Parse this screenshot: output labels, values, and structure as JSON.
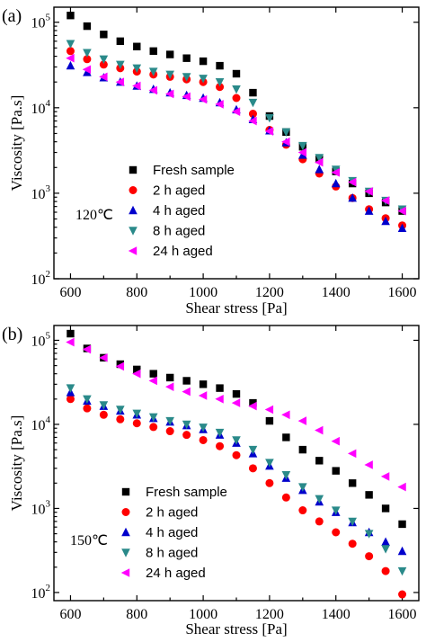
{
  "chart_data": [
    {
      "type": "scatter",
      "panel_label": "(a)",
      "temperature_label": "120℃",
      "xlabel": "Shear stress [Pa]",
      "ylabel": "Viscosity [Pa.s]",
      "xlim": [
        550,
        1650
      ],
      "ylim": [
        100,
        150000
      ],
      "yscale": "log",
      "x_ticks": [
        600,
        800,
        1000,
        1200,
        1400,
        1600
      ],
      "y_ticks": [
        {
          "value": 100,
          "label": "10",
          "exp": "2"
        },
        {
          "value": 1000,
          "label": "10",
          "exp": "3"
        },
        {
          "value": 10000,
          "label": "10",
          "exp": "4"
        },
        {
          "value": 100000,
          "label": "10",
          "exp": "5"
        }
      ],
      "legend_position": "bottom-left",
      "series": [
        {
          "name": "Fresh sample",
          "marker": "square",
          "color": "#000000",
          "x": [
            600,
            650,
            700,
            750,
            800,
            850,
            900,
            950,
            1000,
            1050,
            1100,
            1150,
            1200,
            1250,
            1300,
            1350,
            1400,
            1450,
            1500,
            1550,
            1600
          ],
          "y": [
            120000,
            90000,
            72000,
            60000,
            52000,
            46000,
            42000,
            38000,
            35000,
            31000,
            25000,
            15000,
            8000,
            5200,
            3500,
            2500,
            1800,
            1300,
            1000,
            780,
            620
          ]
        },
        {
          "name": "2 h aged",
          "marker": "circle",
          "color": "#ff0000",
          "x": [
            600,
            650,
            700,
            750,
            800,
            850,
            900,
            950,
            1000,
            1050,
            1100,
            1150,
            1200,
            1250,
            1300,
            1350,
            1400,
            1450,
            1500,
            1550,
            1600
          ],
          "y": [
            46000,
            37000,
            32000,
            29000,
            26500,
            24500,
            23000,
            21500,
            20000,
            17500,
            13000,
            8500,
            5500,
            3700,
            2500,
            1700,
            1200,
            880,
            650,
            510,
            420
          ]
        },
        {
          "name": "4 h aged",
          "marker": "triangle-up",
          "color": "#0000cc",
          "x": [
            600,
            650,
            700,
            750,
            800,
            850,
            900,
            950,
            1000,
            1050,
            1100,
            1150,
            1200,
            1250,
            1300,
            1350,
            1400,
            1450,
            1500,
            1550,
            1600
          ],
          "y": [
            31000,
            26000,
            22500,
            20000,
            18000,
            16500,
            15000,
            14000,
            13000,
            11500,
            9500,
            7300,
            5400,
            3900,
            2800,
            1900,
            1300,
            880,
            620,
            470,
            390
          ]
        },
        {
          "name": "8 h aged",
          "marker": "triangle-down",
          "color": "#2a8a8a",
          "x": [
            600,
            650,
            700,
            750,
            800,
            850,
            900,
            950,
            1000,
            1050,
            1100,
            1150,
            1200,
            1250,
            1300,
            1350,
            1400,
            1450,
            1500,
            1550,
            1600
          ],
          "y": [
            56000,
            44000,
            37000,
            32000,
            29000,
            26500,
            24500,
            23000,
            22000,
            20000,
            16500,
            11500,
            7600,
            5200,
            3600,
            2600,
            1900,
            1400,
            1050,
            820,
            650
          ]
        },
        {
          "name": "24 h aged",
          "marker": "triangle-left",
          "color": "#ff00ff",
          "x": [
            600,
            650,
            700,
            750,
            800,
            850,
            900,
            950,
            1000,
            1050,
            1100,
            1150,
            1200,
            1250,
            1300,
            1350,
            1400,
            1450,
            1500,
            1550,
            1600
          ],
          "y": [
            38000,
            28000,
            23000,
            20000,
            18000,
            16000,
            14500,
            13500,
            12500,
            11000,
            9000,
            7000,
            5300,
            4000,
            3000,
            2300,
            1750,
            1350,
            1050,
            820,
            620
          ]
        }
      ]
    },
    {
      "type": "scatter",
      "panel_label": "(b)",
      "temperature_label": "150℃",
      "xlabel": "Shear stress [Pa]",
      "ylabel": "Viscosity [Pa.s]",
      "xlim": [
        550,
        1650
      ],
      "ylim": [
        80,
        150000
      ],
      "yscale": "log",
      "x_ticks": [
        600,
        800,
        1000,
        1200,
        1400,
        1600
      ],
      "y_ticks": [
        {
          "value": 100,
          "label": "10",
          "exp": "2"
        },
        {
          "value": 1000,
          "label": "10",
          "exp": "3"
        },
        {
          "value": 10000,
          "label": "10",
          "exp": "4"
        },
        {
          "value": 100000,
          "label": "10",
          "exp": "5"
        }
      ],
      "legend_position": "bottom-left",
      "series": [
        {
          "name": "Fresh sample",
          "marker": "square",
          "color": "#000000",
          "x": [
            600,
            650,
            700,
            750,
            800,
            850,
            900,
            950,
            1000,
            1050,
            1100,
            1150,
            1200,
            1250,
            1300,
            1350,
            1400,
            1450,
            1500,
            1550,
            1600
          ],
          "y": [
            120000,
            80000,
            62000,
            52000,
            45000,
            40000,
            36000,
            33000,
            30000,
            27000,
            23000,
            18000,
            11000,
            7000,
            5000,
            3700,
            2800,
            2000,
            1450,
            1000,
            650
          ]
        },
        {
          "name": "2 h aged",
          "marker": "circle",
          "color": "#ff0000",
          "x": [
            600,
            650,
            700,
            750,
            800,
            850,
            900,
            950,
            1000,
            1050,
            1100,
            1150,
            1200,
            1250,
            1300,
            1350,
            1400,
            1450,
            1500,
            1550,
            1600
          ],
          "y": [
            20000,
            15500,
            13000,
            11500,
            10300,
            9300,
            8300,
            7500,
            6500,
            5500,
            4300,
            3000,
            2000,
            1350,
            950,
            700,
            520,
            380,
            270,
            180,
            95
          ]
        },
        {
          "name": "4 h aged",
          "marker": "triangle-up",
          "color": "#0000cc",
          "x": [
            600,
            650,
            700,
            750,
            800,
            850,
            900,
            950,
            1000,
            1050,
            1100,
            1150,
            1200,
            1250,
            1300,
            1350,
            1400,
            1450,
            1500,
            1550,
            1600
          ],
          "y": [
            24000,
            19000,
            16500,
            14500,
            13000,
            11800,
            10700,
            9700,
            8700,
            7500,
            6000,
            4500,
            3200,
            2300,
            1650,
            1200,
            900,
            680,
            520,
            400,
            310
          ]
        },
        {
          "name": "8 h aged",
          "marker": "triangle-down",
          "color": "#2a8a8a",
          "x": [
            600,
            650,
            700,
            750,
            800,
            850,
            900,
            950,
            1000,
            1050,
            1100,
            1150,
            1200,
            1250,
            1300,
            1350,
            1400,
            1450,
            1500,
            1550,
            1600
          ],
          "y": [
            27000,
            20000,
            17000,
            15000,
            13500,
            12200,
            11000,
            10000,
            9200,
            8000,
            6500,
            5000,
            3500,
            2500,
            1800,
            1300,
            950,
            700,
            500,
            330,
            180
          ]
        },
        {
          "name": "24 h aged",
          "marker": "triangle-left",
          "color": "#ff00ff",
          "x": [
            600,
            650,
            700,
            750,
            800,
            850,
            900,
            950,
            1000,
            1050,
            1100,
            1150,
            1200,
            1250,
            1300,
            1350,
            1400,
            1450,
            1500,
            1550,
            1600
          ],
          "y": [
            95000,
            78000,
            62000,
            49000,
            40000,
            33000,
            28000,
            24500,
            22000,
            20000,
            18000,
            16500,
            15000,
            13000,
            11000,
            8500,
            6300,
            4500,
            3300,
            2400,
            1800
          ]
        }
      ]
    }
  ]
}
